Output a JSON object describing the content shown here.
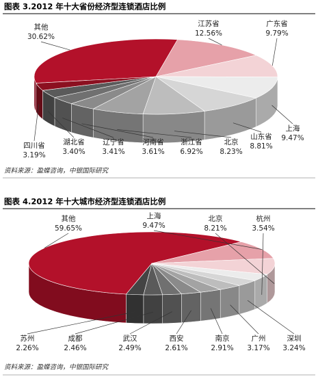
{
  "chart_data": [
    {
      "type": "pie",
      "title": "图表 3.2012 年十大省份经济型连锁酒店比例",
      "source": "资料来源：盈蝶咨询，中银国际研究",
      "categories": [
        "其他",
        "江苏省",
        "广东省",
        "上海",
        "山东省",
        "北京",
        "浙江省",
        "河南省",
        "辽宁省",
        "湖北省",
        "四川省"
      ],
      "values": [
        30.62,
        12.56,
        9.79,
        9.47,
        8.81,
        8.23,
        6.92,
        3.61,
        3.41,
        3.4,
        3.19
      ],
      "value_labels": [
        "30.62%",
        "12.56%",
        "9.79%",
        "9.47%",
        "8.81%",
        "8.23%",
        "6.92%",
        "3.61%",
        "3.41%",
        "3.40%",
        "3.19%"
      ],
      "colors": [
        "#b3112a",
        "#e6a1a9",
        "#f3d3d6",
        "#ececec",
        "#d6d6d6",
        "#bdbdbd",
        "#a3a3a3",
        "#8a8a8a",
        "#707070",
        "#5a5a5a",
        "#8c1020"
      ]
    },
    {
      "type": "pie",
      "title": "图表 4.2012 年十大城市经济型连锁酒店比例",
      "source": "资料来源：盈蝶咨询，中银国际研究",
      "categories": [
        "其他",
        "上海",
        "北京",
        "杭州",
        "深圳",
        "广州",
        "南京",
        "西安",
        "武汉",
        "成都",
        "苏州"
      ],
      "values": [
        59.65,
        9.47,
        8.21,
        3.54,
        3.24,
        3.17,
        2.91,
        2.61,
        2.49,
        2.46,
        2.26
      ],
      "value_labels": [
        "59.65%",
        "9.47%",
        "8.21%",
        "3.54%",
        "3.24%",
        "3.17%",
        "2.91%",
        "2.61%",
        "2.49%",
        "2.46%",
        "2.26%"
      ],
      "colors": [
        "#b3112a",
        "#e6a1a9",
        "#f3d3d6",
        "#ececec",
        "#d6d6d6",
        "#bdbdbd",
        "#a3a3a3",
        "#8a8a8a",
        "#707070",
        "#5a5a5a",
        "#444444"
      ]
    }
  ]
}
